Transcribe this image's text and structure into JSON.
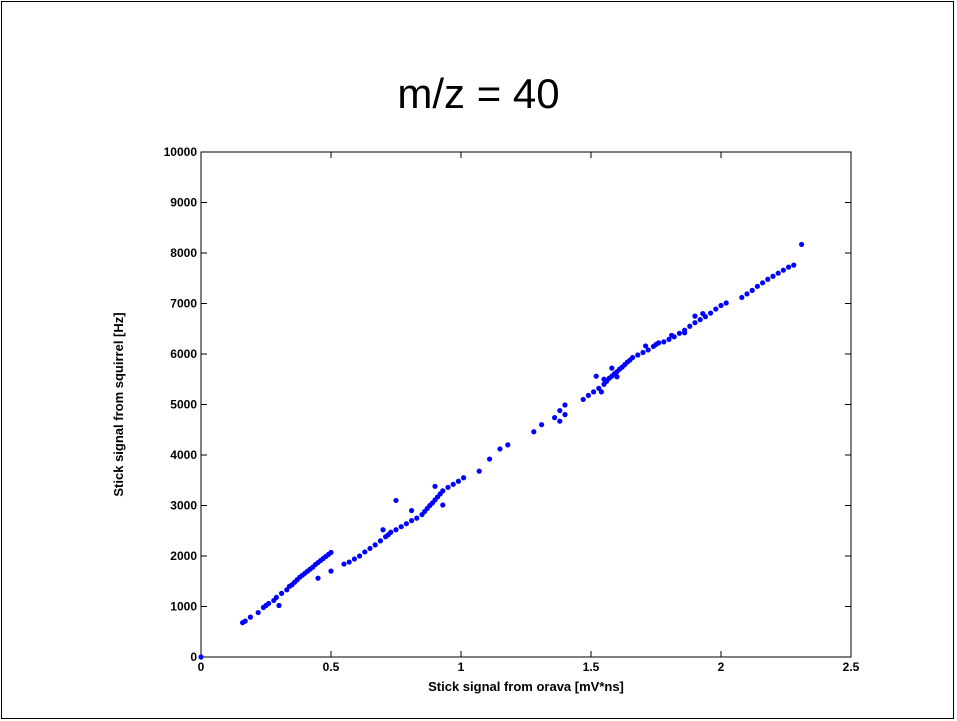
{
  "slide": {
    "title": "m/z = 40"
  },
  "chart_data": {
    "type": "scatter",
    "xlabel": "Stick signal from orava [mV*ns]",
    "ylabel": "Stick signal from squirrel [Hz]",
    "xlim": [
      0,
      2.5
    ],
    "ylim": [
      0,
      10000
    ],
    "xticks": [
      0,
      0.5,
      1,
      1.5,
      2,
      2.5
    ],
    "xtick_labels": [
      "0",
      "0.5",
      "1",
      "1.5",
      "2",
      "2.5"
    ],
    "yticks": [
      0,
      1000,
      2000,
      3000,
      4000,
      5000,
      6000,
      7000,
      8000,
      9000,
      10000
    ],
    "ytick_labels": [
      "0",
      "1000",
      "2000",
      "3000",
      "4000",
      "5000",
      "6000",
      "7000",
      "8000",
      "9000",
      "10000"
    ],
    "grid": false,
    "legend": "none",
    "marker_color": "#0000ff",
    "series": [
      {
        "points": [
          [
            0,
            0
          ],
          [
            0.16,
            680
          ],
          [
            0.17,
            710
          ],
          [
            0.19,
            790
          ],
          [
            0.22,
            880
          ],
          [
            0.24,
            980
          ],
          [
            0.25,
            1020
          ],
          [
            0.26,
            1060
          ],
          [
            0.28,
            1120
          ],
          [
            0.29,
            1180
          ],
          [
            0.3,
            1020
          ],
          [
            0.31,
            1260
          ],
          [
            0.33,
            1330
          ],
          [
            0.34,
            1400
          ],
          [
            0.35,
            1430
          ],
          [
            0.36,
            1480
          ],
          [
            0.37,
            1530
          ],
          [
            0.38,
            1580
          ],
          [
            0.39,
            1620
          ],
          [
            0.4,
            1660
          ],
          [
            0.41,
            1700
          ],
          [
            0.42,
            1740
          ],
          [
            0.43,
            1780
          ],
          [
            0.44,
            1830
          ],
          [
            0.45,
            1870
          ],
          [
            0.46,
            1910
          ],
          [
            0.47,
            1950
          ],
          [
            0.48,
            1990
          ],
          [
            0.49,
            2030
          ],
          [
            0.5,
            2070
          ],
          [
            0.45,
            1560
          ],
          [
            0.5,
            1700
          ],
          [
            0.55,
            1840
          ],
          [
            0.57,
            1880
          ],
          [
            0.59,
            1940
          ],
          [
            0.61,
            2000
          ],
          [
            0.63,
            2080
          ],
          [
            0.65,
            2150
          ],
          [
            0.67,
            2220
          ],
          [
            0.69,
            2300
          ],
          [
            0.71,
            2380
          ],
          [
            0.72,
            2420
          ],
          [
            0.73,
            2470
          ],
          [
            0.75,
            2520
          ],
          [
            0.77,
            2580
          ],
          [
            0.79,
            2640
          ],
          [
            0.81,
            2700
          ],
          [
            0.83,
            2750
          ],
          [
            0.85,
            2820
          ],
          [
            0.86,
            2880
          ],
          [
            0.87,
            2940
          ],
          [
            0.88,
            3000
          ],
          [
            0.89,
            3050
          ],
          [
            0.9,
            3110
          ],
          [
            0.91,
            3170
          ],
          [
            0.92,
            3230
          ],
          [
            0.93,
            3290
          ],
          [
            0.95,
            3360
          ],
          [
            0.97,
            3420
          ],
          [
            0.99,
            3480
          ],
          [
            1.01,
            3550
          ],
          [
            0.75,
            3100
          ],
          [
            0.81,
            2900
          ],
          [
            0.9,
            3380
          ],
          [
            0.7,
            2520
          ],
          [
            0.93,
            3010
          ],
          [
            1.07,
            3680
          ],
          [
            1.11,
            3920
          ],
          [
            1.15,
            4120
          ],
          [
            1.18,
            4200
          ],
          [
            1.28,
            4460
          ],
          [
            1.31,
            4600
          ],
          [
            1.36,
            4740
          ],
          [
            1.38,
            4880
          ],
          [
            1.4,
            4990
          ],
          [
            1.38,
            4670
          ],
          [
            1.4,
            4800
          ],
          [
            1.47,
            5100
          ],
          [
            1.49,
            5180
          ],
          [
            1.51,
            5250
          ],
          [
            1.53,
            5320
          ],
          [
            1.55,
            5400
          ],
          [
            1.56,
            5460
          ],
          [
            1.57,
            5520
          ],
          [
            1.58,
            5560
          ],
          [
            1.59,
            5610
          ],
          [
            1.6,
            5650
          ],
          [
            1.61,
            5700
          ],
          [
            1.62,
            5740
          ],
          [
            1.63,
            5790
          ],
          [
            1.64,
            5840
          ],
          [
            1.65,
            5880
          ],
          [
            1.66,
            5930
          ],
          [
            1.68,
            5980
          ],
          [
            1.7,
            6030
          ],
          [
            1.72,
            6080
          ],
          [
            1.74,
            6150
          ],
          [
            1.76,
            6220
          ],
          [
            1.71,
            6160
          ],
          [
            1.75,
            6190
          ],
          [
            1.6,
            5550
          ],
          [
            1.55,
            5500
          ],
          [
            1.52,
            5560
          ],
          [
            1.58,
            5720
          ],
          [
            1.54,
            5250
          ],
          [
            1.78,
            6240
          ],
          [
            1.8,
            6290
          ],
          [
            1.82,
            6340
          ],
          [
            1.84,
            6410
          ],
          [
            1.86,
            6470
          ],
          [
            1.88,
            6550
          ],
          [
            1.9,
            6620
          ],
          [
            1.92,
            6680
          ],
          [
            1.94,
            6740
          ],
          [
            1.96,
            6810
          ],
          [
            1.98,
            6890
          ],
          [
            2.0,
            6960
          ],
          [
            2.02,
            7010
          ],
          [
            1.9,
            6750
          ],
          [
            1.93,
            6800
          ],
          [
            1.81,
            6370
          ],
          [
            1.86,
            6420
          ],
          [
            2.08,
            7120
          ],
          [
            2.1,
            7190
          ],
          [
            2.12,
            7260
          ],
          [
            2.14,
            7340
          ],
          [
            2.16,
            7410
          ],
          [
            2.18,
            7480
          ],
          [
            2.2,
            7540
          ],
          [
            2.22,
            7600
          ],
          [
            2.24,
            7660
          ],
          [
            2.26,
            7720
          ],
          [
            2.28,
            7760
          ],
          [
            2.31,
            8170
          ]
        ]
      }
    ]
  }
}
